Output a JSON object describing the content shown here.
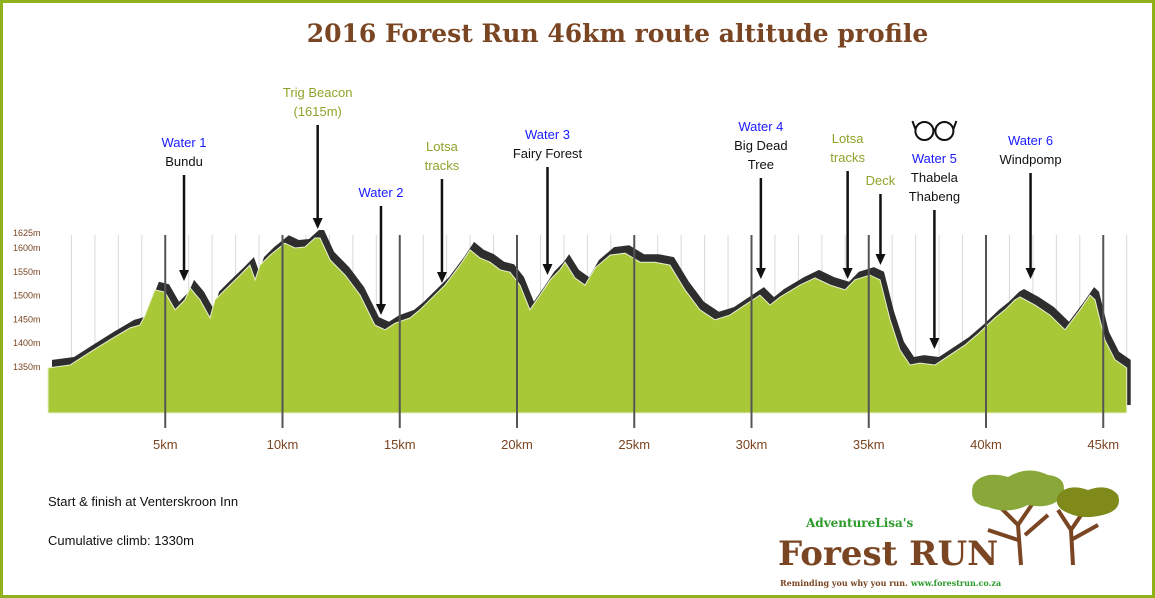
{
  "title": "2016 Forest Run 46km route altitude profile",
  "notes": {
    "start": "Start & finish at Venterskroon Inn",
    "climb": "Cumulative climb: 1330m"
  },
  "logo": {
    "top": "AdventureLisa's",
    "main": "Forest RUN",
    "tagline": "Reminding you why you run.",
    "url": "www.forestrun.co.za"
  },
  "colors": {
    "fill": "#a9c838",
    "shadow": "#2e2e2e",
    "title": "#7a4522",
    "water": "#1a1aff",
    "olive": "#8fa32a",
    "frame": "#8fb21a"
  },
  "markers": [
    {
      "km": 5.8,
      "lines": [
        {
          "t": "Water 1",
          "c": "blue"
        },
        {
          "t": "Bundu",
          "c": "black"
        }
      ]
    },
    {
      "km": 11.5,
      "lines": [
        {
          "t": "Trig Beacon",
          "c": "olive"
        },
        {
          "t": "(1615m)",
          "c": "olive"
        }
      ]
    },
    {
      "km": 14.2,
      "lines": [
        {
          "t": "Water 2",
          "c": "blue"
        }
      ]
    },
    {
      "km": 16.8,
      "lines": [
        {
          "t": "Lotsa",
          "c": "olive"
        },
        {
          "t": "tracks",
          "c": "olive"
        }
      ]
    },
    {
      "km": 21.3,
      "lines": [
        {
          "t": "Water 3",
          "c": "blue"
        },
        {
          "t": "Fairy Forest",
          "c": "black"
        }
      ]
    },
    {
      "km": 30.4,
      "lines": [
        {
          "t": "Water 4",
          "c": "blue"
        },
        {
          "t": "Big Dead",
          "c": "black"
        },
        {
          "t": "Tree",
          "c": "black"
        }
      ]
    },
    {
      "km": 34.1,
      "lines": [
        {
          "t": "Lotsa",
          "c": "olive"
        },
        {
          "t": "tracks",
          "c": "olive"
        }
      ]
    },
    {
      "km": 35.5,
      "lines": [
        {
          "t": "Deck",
          "c": "olive"
        }
      ]
    },
    {
      "km": 37.8,
      "lines": [
        {
          "t": "Water 5",
          "c": "blue"
        },
        {
          "t": "Thabela",
          "c": "black"
        },
        {
          "t": "Thabeng",
          "c": "black"
        }
      ],
      "icon": "glasses-icon"
    },
    {
      "km": 41.9,
      "lines": [
        {
          "t": "Water 6",
          "c": "blue"
        },
        {
          "t": "Windpomp",
          "c": "black"
        }
      ]
    }
  ],
  "chart_data": {
    "type": "area",
    "title": "2016 Forest Run 46km route altitude profile",
    "xlabel": "",
    "ylabel": "",
    "xlim": [
      0,
      46
    ],
    "ylim": [
      1250,
      1625
    ],
    "xticks": [
      5,
      10,
      15,
      20,
      25,
      30,
      35,
      40,
      45
    ],
    "xtick_labels": [
      "5km",
      "10km",
      "15km",
      "20km",
      "25km",
      "30km",
      "35km",
      "40km",
      "45km"
    ],
    "yticks": [
      1350,
      1400,
      1450,
      1500,
      1550,
      1600,
      1625
    ],
    "ytick_labels": [
      "1350m",
      "1400m",
      "1450m",
      "1500m",
      "1550m",
      "1600m",
      "1625m"
    ],
    "grid": "vertical every 1km",
    "x": [
      0,
      0.3,
      0.94,
      1.79,
      2.64,
      3.5,
      3.92,
      4.14,
      4.56,
      4.99,
      5.42,
      5.84,
      6.06,
      6.48,
      6.91,
      7.12,
      7.55,
      8.19,
      8.61,
      8.83,
      9.04,
      9.47,
      10.1,
      10.53,
      10.96,
      11.38,
      11.6,
      12.03,
      12.67,
      13.31,
      13.94,
      14.37,
      14.8,
      15.44,
      15.86,
      16.29,
      16.93,
      17.57,
      18.0,
      18.42,
      18.85,
      19.28,
      19.7,
      20.13,
      20.55,
      20.98,
      21.41,
      21.83,
      22.05,
      22.47,
      22.9,
      23.33,
      23.97,
      24.61,
      25.25,
      25.88,
      26.52,
      27.16,
      27.8,
      28.44,
      29.08,
      29.72,
      30.36,
      30.79,
      31.22,
      32.07,
      32.71,
      33.35,
      33.99,
      34.41,
      35.05,
      35.48,
      35.91,
      36.33,
      36.76,
      37.18,
      37.82,
      38.46,
      39.1,
      39.74,
      40.38,
      40.81,
      41.24,
      41.45,
      42.09,
      42.73,
      43.37,
      44.01,
      44.44,
      44.65,
      45.07,
      45.5,
      46
    ],
    "y": [
      1346,
      1348,
      1352,
      1379,
      1405,
      1430,
      1436,
      1457,
      1510,
      1505,
      1468,
      1489,
      1514,
      1489,
      1451,
      1489,
      1510,
      1541,
      1562,
      1531,
      1562,
      1583,
      1608,
      1598,
      1600,
      1619,
      1619,
      1573,
      1541,
      1499,
      1436,
      1426,
      1440,
      1451,
      1468,
      1489,
      1520,
      1562,
      1594,
      1577,
      1568,
      1552,
      1547,
      1520,
      1468,
      1499,
      1531,
      1552,
      1568,
      1535,
      1520,
      1556,
      1583,
      1587,
      1568,
      1568,
      1562,
      1510,
      1468,
      1447,
      1457,
      1478,
      1499,
      1478,
      1495,
      1520,
      1535,
      1520,
      1510,
      1531,
      1541,
      1531,
      1447,
      1384,
      1352,
      1356,
      1352,
      1373,
      1394,
      1421,
      1451,
      1468,
      1489,
      1495,
      1478,
      1457,
      1426,
      1468,
      1499,
      1489,
      1405,
      1363,
      1346
    ]
  }
}
